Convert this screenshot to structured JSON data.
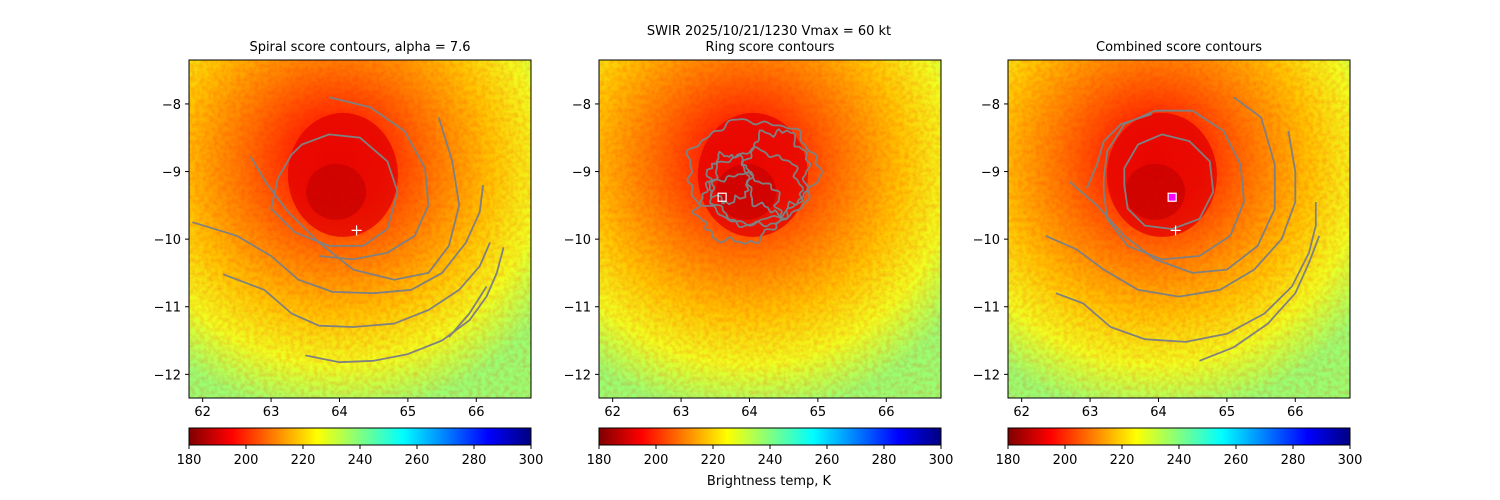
{
  "figure": {
    "suptitle_line1": "SWIR  2025/10/21/1230    Vmax = 60 kt",
    "colorbar_label": "Brightness temp, K"
  },
  "colormap": {
    "name": "jet_r",
    "stops": [
      "#800000",
      "#ff0000",
      "#ff8000",
      "#ffff00",
      "#80ff80",
      "#00ffff",
      "#0080ff",
      "#0000ff",
      "#000080"
    ]
  },
  "colors": {
    "contour": "#808080",
    "marker_cross": "#ffffff",
    "marker_square": "#ffffff",
    "marker_square_combined": "#ff00ff"
  },
  "chart_data": [
    {
      "type": "heatmap",
      "title": "Spiral score contours, alpha =  7.6",
      "xlim": [
        61.8,
        66.8
      ],
      "ylim": [
        -12.35,
        -7.35
      ],
      "xticks": [
        62,
        63,
        64,
        65,
        66
      ],
      "yticks": [
        -8,
        -9,
        -10,
        -11,
        -12
      ],
      "colorbar": {
        "range": [
          180,
          300
        ],
        "ticks": [
          180,
          200,
          220,
          240,
          260,
          280,
          300
        ]
      },
      "contour_type": "spiral",
      "markers": [
        {
          "type": "cross",
          "lon": 64.25,
          "lat": -9.87
        }
      ]
    },
    {
      "type": "heatmap",
      "title": "Ring score contours",
      "xlim": [
        61.8,
        66.8
      ],
      "ylim": [
        -12.35,
        -7.35
      ],
      "xticks": [
        62,
        63,
        64,
        65,
        66
      ],
      "yticks": [
        -8,
        -9,
        -10,
        -11,
        -12
      ],
      "colorbar": {
        "range": [
          180,
          300
        ],
        "ticks": [
          180,
          200,
          220,
          240,
          260,
          280,
          300
        ]
      },
      "contour_type": "ring",
      "markers": [
        {
          "type": "square",
          "lon": 63.6,
          "lat": -9.38
        }
      ]
    },
    {
      "type": "heatmap",
      "title": "Combined score contours",
      "xlim": [
        61.8,
        66.8
      ],
      "ylim": [
        -12.35,
        -7.35
      ],
      "xticks": [
        62,
        63,
        64,
        65,
        66
      ],
      "yticks": [
        -8,
        -9,
        -10,
        -11,
        -12
      ],
      "colorbar": {
        "range": [
          180,
          300
        ],
        "ticks": [
          180,
          200,
          220,
          240,
          260,
          280,
          300
        ]
      },
      "contour_type": "combined",
      "markers": [
        {
          "type": "square",
          "lon": 64.2,
          "lat": -9.38
        },
        {
          "type": "cross",
          "lon": 64.25,
          "lat": -9.87
        }
      ]
    }
  ]
}
